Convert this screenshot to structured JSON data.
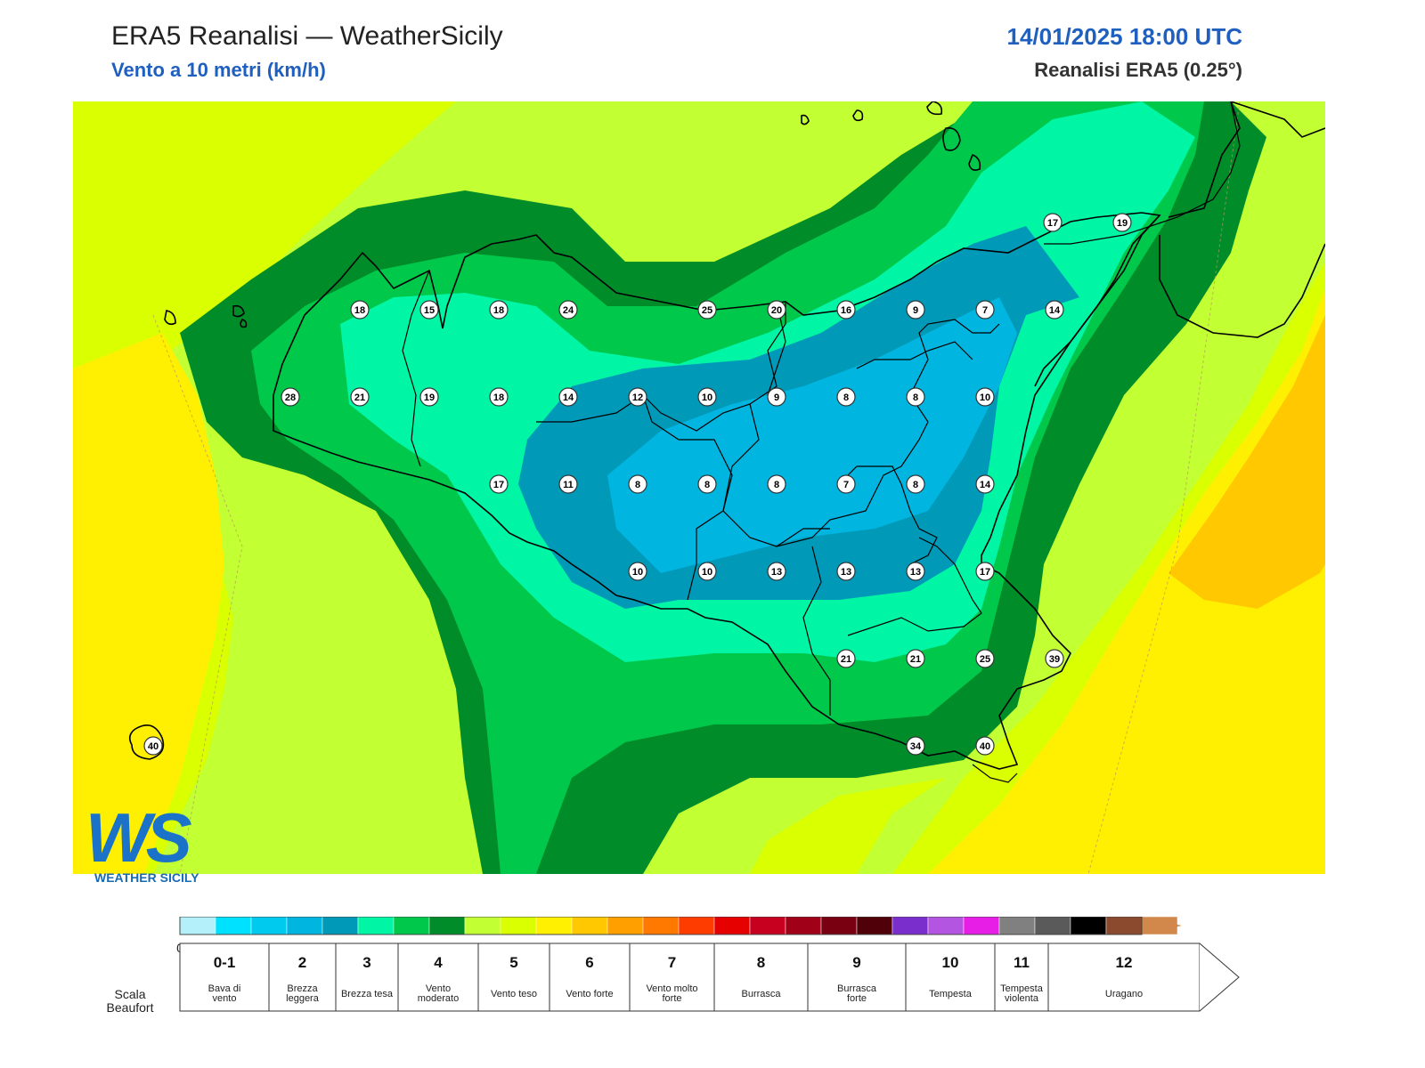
{
  "header": {
    "title": "ERA5 Reanalisi — WeatherSicily",
    "subtitle": "Vento a 10 metri (km/h)",
    "datetime": "14/01/2025 18:00 UTC",
    "source": "Reanalisi ERA5 (0.25°)"
  },
  "logo": {
    "letters": "WS",
    "text": "WEATHER SICILY"
  },
  "wind_stations": [
    {
      "v": "17"
    },
    {
      "v": "19"
    },
    {
      "v": "18"
    },
    {
      "v": "15"
    },
    {
      "v": "18"
    },
    {
      "v": "24"
    },
    {
      "v": "25"
    },
    {
      "v": "20"
    },
    {
      "v": "16"
    },
    {
      "v": "9"
    },
    {
      "v": "7"
    },
    {
      "v": "14"
    },
    {
      "v": "28"
    },
    {
      "v": "21"
    },
    {
      "v": "19"
    },
    {
      "v": "18"
    },
    {
      "v": "14"
    },
    {
      "v": "12"
    },
    {
      "v": "10"
    },
    {
      "v": "9"
    },
    {
      "v": "8"
    },
    {
      "v": "8"
    },
    {
      "v": "10"
    },
    {
      "v": "17"
    },
    {
      "v": "11"
    },
    {
      "v": "8"
    },
    {
      "v": "8"
    },
    {
      "v": "8"
    },
    {
      "v": "7"
    },
    {
      "v": "8"
    },
    {
      "v": "14"
    },
    {
      "v": "10"
    },
    {
      "v": "10"
    },
    {
      "v": "13"
    },
    {
      "v": "13"
    },
    {
      "v": "13"
    },
    {
      "v": "17"
    },
    {
      "v": "21"
    },
    {
      "v": "21"
    },
    {
      "v": "25"
    },
    {
      "v": "39"
    },
    {
      "v": "40"
    },
    {
      "v": "34"
    },
    {
      "v": "40"
    }
  ],
  "colorbar": {
    "ticks": [
      "0",
      "2",
      "5",
      "7",
      "10",
      "15",
      "20",
      "25",
      "30",
      "35",
      "40",
      "45",
      "50",
      "55",
      "60",
      "65",
      "70",
      "75",
      "80",
      "85",
      "90",
      "95",
      "100",
      "110",
      "120",
      "130",
      "140",
      "150",
      "160"
    ],
    "colors": [
      "#b3f0fa",
      "#00e1ff",
      "#00cbef",
      "#00b5e0",
      "#0099b8",
      "#00f5a5",
      "#00c84a",
      "#008c28",
      "#c2ff33",
      "#d9ff00",
      "#ffef00",
      "#ffc800",
      "#ffa000",
      "#ff7800",
      "#ff3c00",
      "#e60000",
      "#c80020",
      "#a00018",
      "#780010",
      "#500008",
      "#7a2ecc",
      "#b355e0",
      "#e61ee6",
      "#808080",
      "#5a5a5a",
      "#000000",
      "#8b4a2e",
      "#d2884a"
    ]
  },
  "beaufort": {
    "title": "Scala Beaufort",
    "scale": [
      {
        "force": "0-1",
        "label": "Bava di vento"
      },
      {
        "force": "2",
        "label": "Brezza leggera"
      },
      {
        "force": "3",
        "label": "Brezza tesa"
      },
      {
        "force": "4",
        "label": "Vento moderato"
      },
      {
        "force": "5",
        "label": "Vento teso"
      },
      {
        "force": "6",
        "label": "Vento forte"
      },
      {
        "force": "7",
        "label": "Vento molto forte"
      },
      {
        "force": "8",
        "label": "Burrasca"
      },
      {
        "force": "9",
        "label": "Burrasca forte"
      },
      {
        "force": "10",
        "label": "Tempesta"
      },
      {
        "force": "11",
        "label": "Tempesta violenta"
      },
      {
        "force": "12",
        "label": "Uragano"
      }
    ]
  }
}
